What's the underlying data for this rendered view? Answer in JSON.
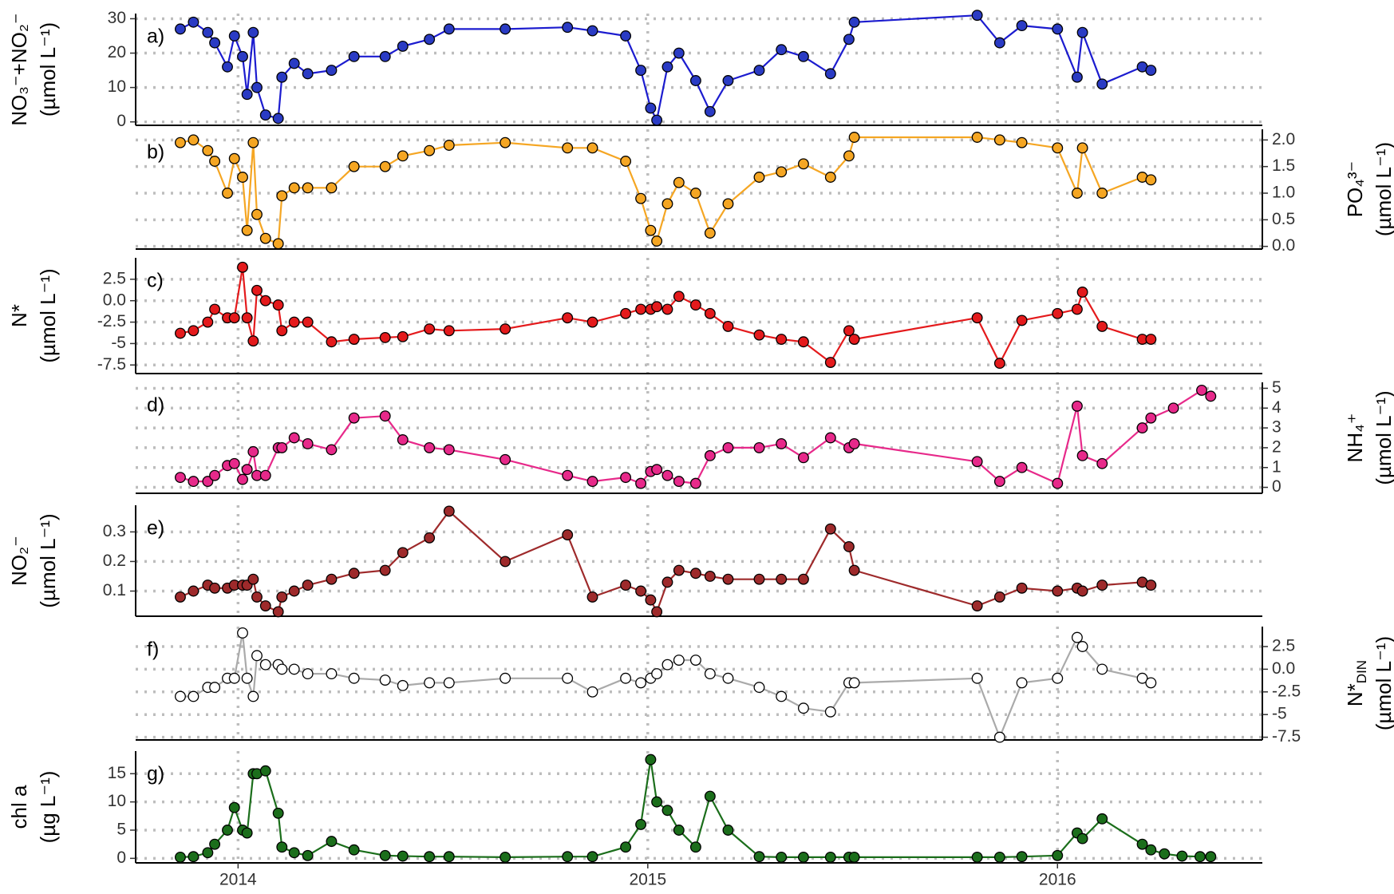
{
  "chart_data": [
    {
      "type": "line",
      "label": "a)",
      "axis_side": "left",
      "ylabel": [
        "NO₃⁻+NO₂⁻",
        "(µmol L⁻¹)"
      ],
      "color": "#1c1ccf",
      "marker_color": "#2a3bc4",
      "x": [
        2013.859,
        2013.891,
        2013.926,
        2013.943,
        2013.974,
        2013.991,
        2014.011,
        2014.022,
        2014.037,
        2014.046,
        2014.067,
        2014.098,
        2014.107,
        2014.137,
        2014.17,
        2014.228,
        2014.283,
        2014.359,
        2014.402,
        2014.467,
        2014.515,
        2014.652,
        2014.804,
        2014.865,
        2014.946,
        2014.983,
        2015.007,
        2015.022,
        2015.048,
        2015.076,
        2015.117,
        2015.152,
        2015.196,
        2015.272,
        2015.326,
        2015.38,
        2015.446,
        2015.491,
        2015.504,
        2015.804,
        2015.859,
        2015.913,
        2016.0,
        2016.048,
        2016.061,
        2016.109,
        2016.207,
        2016.228
      ],
      "values": [
        27,
        29,
        26,
        23,
        16,
        25,
        19,
        8,
        26,
        10,
        2,
        1,
        13,
        17,
        14,
        15,
        19,
        19,
        22,
        24,
        27,
        27,
        27.5,
        26.5,
        25,
        15,
        4,
        0.5,
        16,
        20,
        12,
        3,
        12,
        15,
        21,
        19,
        14,
        24,
        29,
        31,
        23,
        28,
        27,
        13,
        26,
        11,
        16,
        15
      ],
      "xlim": [
        2013.75,
        2016.5
      ],
      "ylim": [
        -1,
        31.5
      ],
      "yticks": [
        0,
        10,
        20,
        30
      ],
      "grid": true
    },
    {
      "type": "line",
      "label": "b)",
      "axis_side": "right",
      "ylabel": [
        "PO₄³⁻",
        "(µmol L⁻¹)"
      ],
      "color": "#f5a623",
      "marker_color": "#f5a623",
      "x": [
        2013.859,
        2013.891,
        2013.926,
        2013.943,
        2013.974,
        2013.991,
        2014.011,
        2014.022,
        2014.037,
        2014.046,
        2014.067,
        2014.098,
        2014.107,
        2014.137,
        2014.17,
        2014.228,
        2014.283,
        2014.359,
        2014.402,
        2014.467,
        2014.515,
        2014.652,
        2014.804,
        2014.865,
        2014.946,
        2014.983,
        2015.007,
        2015.022,
        2015.048,
        2015.076,
        2015.117,
        2015.152,
        2015.196,
        2015.272,
        2015.326,
        2015.38,
        2015.446,
        2015.491,
        2015.504,
        2015.804,
        2015.859,
        2015.913,
        2016.0,
        2016.048,
        2016.061,
        2016.109,
        2016.207,
        2016.228
      ],
      "values": [
        1.95,
        2.0,
        1.8,
        1.6,
        1.0,
        1.65,
        1.3,
        0.3,
        1.95,
        0.6,
        0.15,
        0.05,
        0.95,
        1.1,
        1.1,
        1.1,
        1.5,
        1.5,
        1.7,
        1.8,
        1.9,
        1.95,
        1.85,
        1.85,
        1.6,
        0.9,
        0.3,
        0.1,
        0.8,
        1.2,
        1.0,
        0.25,
        0.8,
        1.3,
        1.4,
        1.55,
        1.3,
        1.7,
        2.05,
        2.05,
        2.0,
        1.95,
        1.85,
        1.0,
        1.85,
        1.0,
        1.3,
        1.25
      ],
      "xlim": [
        2013.75,
        2016.5
      ],
      "ylim": [
        -0.05,
        2.2
      ],
      "yticks": [
        {
          "value": 0,
          "label": "0.0"
        },
        0.5,
        {
          "value": 1,
          "label": "1.0"
        },
        1.5,
        {
          "value": 2,
          "label": "2.0"
        }
      ],
      "grid": true
    },
    {
      "type": "line",
      "label": "c)",
      "axis_side": "left",
      "ylabel": [
        "N*",
        "(µmol L⁻¹)"
      ],
      "color": "#e41a1c",
      "marker_color": "#e41a1c",
      "x": [
        2013.859,
        2013.891,
        2013.926,
        2013.943,
        2013.974,
        2013.991,
        2014.011,
        2014.022,
        2014.037,
        2014.046,
        2014.067,
        2014.098,
        2014.107,
        2014.137,
        2014.17,
        2014.228,
        2014.283,
        2014.359,
        2014.402,
        2014.467,
        2014.515,
        2014.652,
        2014.804,
        2014.865,
        2014.946,
        2014.983,
        2015.007,
        2015.022,
        2015.048,
        2015.076,
        2015.117,
        2015.152,
        2015.196,
        2015.272,
        2015.326,
        2015.38,
        2015.446,
        2015.491,
        2015.504,
        2015.804,
        2015.859,
        2015.913,
        2016.0,
        2016.048,
        2016.061,
        2016.109,
        2016.207,
        2016.228
      ],
      "values": [
        -3.8,
        -3.5,
        -2.5,
        -1,
        -2,
        -2,
        3.9,
        -2,
        -4.7,
        1.2,
        0,
        -0.5,
        -3.5,
        -2.5,
        -2.5,
        -4.8,
        -4.5,
        -4.3,
        -4.2,
        -3.3,
        -3.5,
        -3.3,
        -2,
        -2.5,
        -1.5,
        -1,
        -1,
        -0.7,
        -1,
        0.5,
        -0.5,
        -1.5,
        -3,
        -4,
        -4.5,
        -4.8,
        -7.2,
        -3.5,
        -4.5,
        -2,
        -7.3,
        -2.3,
        -1.5,
        -1,
        1,
        -3,
        -4.5,
        -4.5
      ],
      "xlim": [
        2013.75,
        2016.5
      ],
      "ylim": [
        -8.5,
        5
      ],
      "yticks": [
        -7.5,
        -5,
        -2.5,
        {
          "value": 0,
          "label": "0.0"
        },
        2.5
      ],
      "grid": true
    },
    {
      "type": "line",
      "label": "d)",
      "axis_side": "right",
      "ylabel": [
        "NH₄⁺",
        "(µmol L⁻¹)"
      ],
      "color": "#e7298a",
      "marker_color": "#e7298a",
      "x": [
        2013.859,
        2013.891,
        2013.926,
        2013.943,
        2013.974,
        2013.991,
        2014.011,
        2014.022,
        2014.037,
        2014.046,
        2014.067,
        2014.098,
        2014.107,
        2014.137,
        2014.17,
        2014.228,
        2014.283,
        2014.359,
        2014.402,
        2014.467,
        2014.515,
        2014.652,
        2014.804,
        2014.865,
        2014.946,
        2014.983,
        2015.007,
        2015.022,
        2015.048,
        2015.076,
        2015.117,
        2015.152,
        2015.196,
        2015.272,
        2015.326,
        2015.38,
        2015.446,
        2015.491,
        2015.504,
        2015.804,
        2015.859,
        2015.913,
        2016.0,
        2016.048,
        2016.061,
        2016.109,
        2016.207,
        2016.228,
        2016.283,
        2016.352,
        2016.374
      ],
      "values": [
        0.5,
        0.3,
        0.3,
        0.6,
        1.1,
        1.2,
        0.4,
        0.9,
        1.8,
        0.6,
        0.6,
        2.0,
        2.0,
        2.5,
        2.2,
        1.9,
        3.5,
        3.6,
        2.4,
        2.0,
        1.9,
        1.4,
        0.6,
        0.3,
        0.5,
        0.2,
        0.8,
        0.9,
        0.6,
        0.3,
        0.2,
        1.6,
        2.0,
        2.0,
        2.2,
        1.5,
        2.5,
        2.0,
        2.2,
        1.3,
        0.3,
        1.0,
        0.2,
        4.1,
        1.6,
        1.2,
        3.0,
        3.5,
        4.0,
        4.9,
        4.6
      ],
      "xlim": [
        2013.75,
        2016.5
      ],
      "ylim": [
        -0.3,
        5.3
      ],
      "yticks": [
        0,
        1,
        2,
        3,
        4,
        5
      ],
      "grid": true
    },
    {
      "type": "line",
      "label": "e)",
      "axis_side": "left",
      "ylabel": [
        "NO₂⁻",
        "(µmol L⁻¹)"
      ],
      "color": "#9e2a2b",
      "marker_color": "#9e2a2b",
      "x": [
        2013.859,
        2013.891,
        2013.926,
        2013.943,
        2013.974,
        2013.991,
        2014.011,
        2014.022,
        2014.037,
        2014.046,
        2014.067,
        2014.098,
        2014.107,
        2014.137,
        2014.17,
        2014.228,
        2014.283,
        2014.359,
        2014.402,
        2014.467,
        2014.515,
        2014.652,
        2014.804,
        2014.865,
        2014.946,
        2014.983,
        2015.007,
        2015.022,
        2015.048,
        2015.076,
        2015.117,
        2015.152,
        2015.196,
        2015.272,
        2015.326,
        2015.38,
        2015.446,
        2015.491,
        2015.504,
        2015.804,
        2015.859,
        2015.913,
        2016.0,
        2016.048,
        2016.061,
        2016.109,
        2016.207,
        2016.228
      ],
      "values": [
        0.08,
        0.1,
        0.12,
        0.11,
        0.11,
        0.12,
        0.12,
        0.12,
        0.14,
        0.08,
        0.05,
        0.03,
        0.08,
        0.1,
        0.12,
        0.14,
        0.16,
        0.17,
        0.23,
        0.28,
        0.37,
        0.2,
        0.29,
        0.08,
        0.12,
        0.1,
        0.07,
        0.03,
        0.13,
        0.17,
        0.16,
        0.15,
        0.14,
        0.14,
        0.14,
        0.14,
        0.31,
        0.25,
        0.17,
        0.05,
        0.08,
        0.11,
        0.1,
        0.11,
        0.1,
        0.12,
        0.13,
        0.12
      ],
      "xlim": [
        2013.75,
        2016.5
      ],
      "ylim": [
        0.015,
        0.39
      ],
      "yticks": [
        0.1,
        0.2,
        0.3
      ],
      "grid": true
    },
    {
      "type": "line",
      "label": "f)",
      "axis_side": "right",
      "ylabel": [
        "N*",
        "(µmol L⁻¹)"
      ],
      "ylabel_subscript": "DIN",
      "color": "#aaaaaa",
      "marker_color": "#ffffff",
      "x": [
        2013.859,
        2013.891,
        2013.926,
        2013.943,
        2013.974,
        2013.991,
        2014.011,
        2014.022,
        2014.037,
        2014.046,
        2014.067,
        2014.098,
        2014.107,
        2014.137,
        2014.17,
        2014.228,
        2014.283,
        2014.359,
        2014.402,
        2014.467,
        2014.515,
        2014.652,
        2014.804,
        2014.865,
        2014.946,
        2014.983,
        2015.007,
        2015.022,
        2015.048,
        2015.076,
        2015.117,
        2015.152,
        2015.196,
        2015.272,
        2015.326,
        2015.38,
        2015.446,
        2015.491,
        2015.504,
        2015.804,
        2015.859,
        2015.913,
        2016.0,
        2016.048,
        2016.061,
        2016.109,
        2016.207,
        2016.228
      ],
      "values": [
        -3,
        -3,
        -2,
        -2,
        -1,
        -1,
        4,
        -1,
        -3,
        1.5,
        0.5,
        0.5,
        0,
        0,
        -0.5,
        -0.5,
        -1,
        -1.2,
        -1.8,
        -1.5,
        -1.5,
        -1,
        -1,
        -2.5,
        -1,
        -1.5,
        -1,
        -0.5,
        0.5,
        1,
        1,
        -0.5,
        -1,
        -2,
        -3,
        -4.3,
        -4.7,
        -1.5,
        -1.5,
        -1,
        -7.5,
        -1.5,
        -1,
        3.5,
        2.5,
        0,
        -1,
        -1.5
      ],
      "xlim": [
        2013.75,
        2016.5
      ],
      "ylim": [
        -7.8,
        4.7
      ],
      "yticks": [
        -7.5,
        -5,
        -2.5,
        {
          "value": 0,
          "label": "0.0"
        },
        2.5
      ],
      "grid": true
    },
    {
      "type": "line",
      "label": "g)",
      "axis_side": "left",
      "ylabel": [
        "chl a",
        "(µg L⁻¹)"
      ],
      "color": "#1b6e1b",
      "marker_color": "#1b6e1b",
      "x": [
        2013.859,
        2013.891,
        2013.926,
        2013.943,
        2013.974,
        2013.991,
        2014.011,
        2014.022,
        2014.037,
        2014.046,
        2014.067,
        2014.098,
        2014.107,
        2014.137,
        2014.17,
        2014.228,
        2014.283,
        2014.359,
        2014.402,
        2014.467,
        2014.515,
        2014.652,
        2014.804,
        2014.865,
        2014.946,
        2014.983,
        2015.007,
        2015.022,
        2015.048,
        2015.076,
        2015.117,
        2015.152,
        2015.196,
        2015.272,
        2015.326,
        2015.38,
        2015.446,
        2015.491,
        2015.504,
        2015.804,
        2015.859,
        2015.913,
        2016.0,
        2016.048,
        2016.061,
        2016.109,
        2016.207,
        2016.228,
        2016.261,
        2016.304,
        2016.348,
        2016.374
      ],
      "values": [
        0.2,
        0.3,
        1,
        2.5,
        5,
        9,
        5,
        4.5,
        15,
        15,
        15.5,
        8,
        2,
        1,
        0.5,
        3,
        1.5,
        0.5,
        0.4,
        0.3,
        0.3,
        0.2,
        0.3,
        0.3,
        2,
        6,
        17.5,
        10,
        8.5,
        5,
        2,
        11,
        5,
        0.3,
        0.2,
        0.2,
        0.2,
        0.2,
        0.2,
        0.2,
        0.2,
        0.3,
        0.5,
        4.5,
        3.5,
        7,
        2.5,
        1.5,
        0.8,
        0.4,
        0.3,
        0.3
      ],
      "xlim": [
        2013.75,
        2016.5
      ],
      "ylim": [
        -0.8,
        19
      ],
      "yticks": [
        0,
        5,
        10,
        15
      ],
      "grid": true,
      "xticks": [
        2014,
        2015,
        2016
      ]
    }
  ]
}
